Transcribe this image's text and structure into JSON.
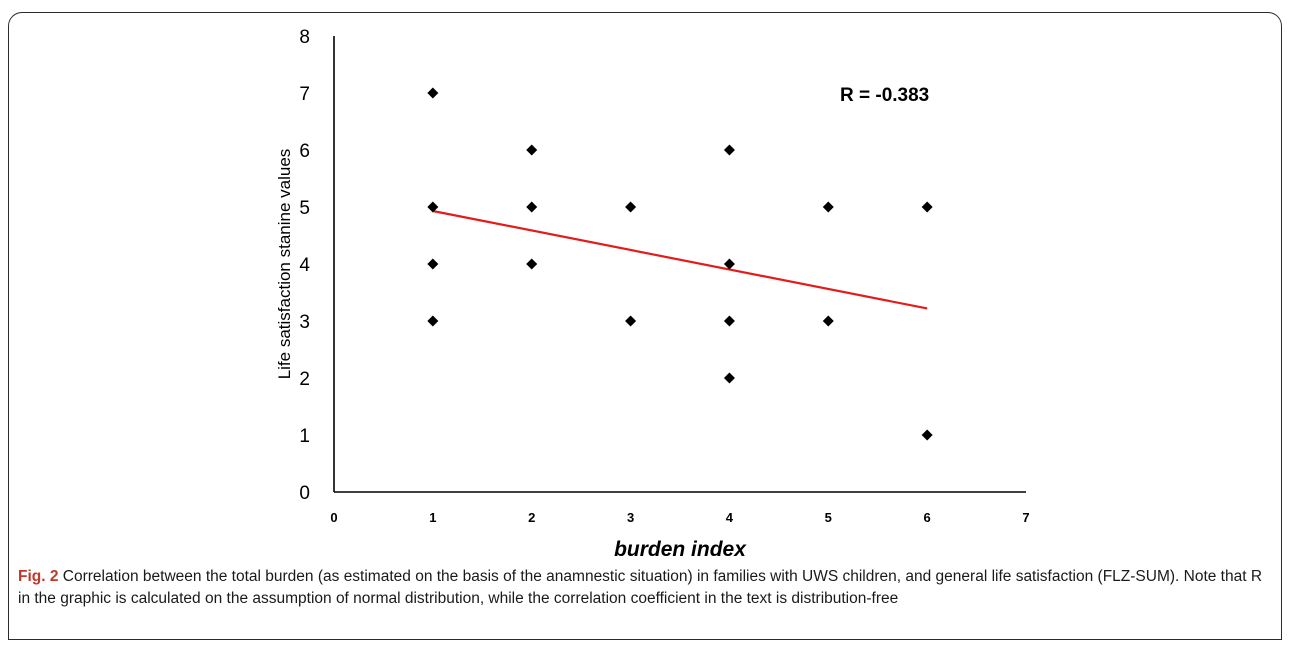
{
  "figure": {
    "label": "Fig. 2",
    "caption": "Correlation between the total burden (as estimated on the basis of the anamnestic situation) in families with UWS children, and general life satisfaction (FLZ-SUM). Note that R in the graphic is calculated on the assumption of normal distribution, while the correlation coefficient in the text is distribution-free"
  },
  "chart_data": {
    "type": "scatter",
    "title": "",
    "xlabel": "burden index",
    "ylabel": "Life satisfaction stanine values",
    "xlim": [
      0,
      7
    ],
    "ylim": [
      0,
      8
    ],
    "x_ticks": [
      "0",
      "1",
      "2",
      "3",
      "4",
      "5",
      "6",
      "7"
    ],
    "y_ticks": [
      "0",
      "1",
      "2",
      "3",
      "4",
      "5",
      "6",
      "7",
      "8"
    ],
    "grid": false,
    "marker": "diamond",
    "marker_color": "#000000",
    "points": [
      {
        "x": 1,
        "y": 7
      },
      {
        "x": 1,
        "y": 5
      },
      {
        "x": 1,
        "y": 4
      },
      {
        "x": 1,
        "y": 3
      },
      {
        "x": 2,
        "y": 6
      },
      {
        "x": 2,
        "y": 5
      },
      {
        "x": 2,
        "y": 4
      },
      {
        "x": 3,
        "y": 5
      },
      {
        "x": 3,
        "y": 3
      },
      {
        "x": 4,
        "y": 6
      },
      {
        "x": 4,
        "y": 4
      },
      {
        "x": 4,
        "y": 3
      },
      {
        "x": 4,
        "y": 2
      },
      {
        "x": 5,
        "y": 5
      },
      {
        "x": 5,
        "y": 3
      },
      {
        "x": 6,
        "y": 5
      },
      {
        "x": 6,
        "y": 1
      }
    ],
    "trendline": {
      "x": [
        1,
        6
      ],
      "y": [
        4.93,
        3.22
      ],
      "color": "#e41b1b"
    },
    "annotation": "R = -0.383"
  }
}
